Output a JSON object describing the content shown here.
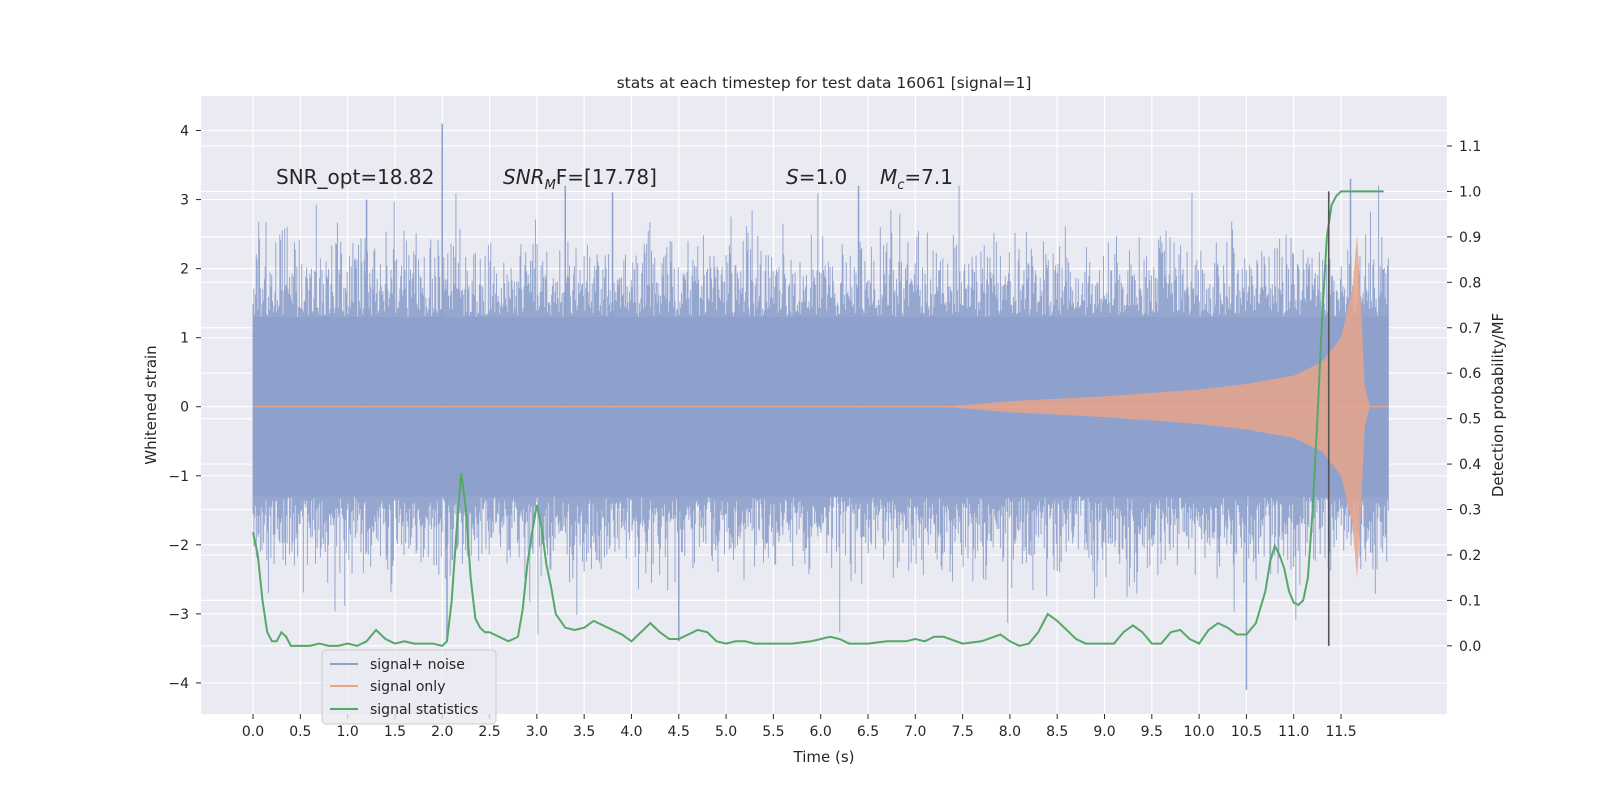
{
  "chart_data": {
    "type": "line",
    "title": "stats at each timestep for test data 16061 [signal=1]",
    "xlabel": "Time (s)",
    "ylabel": "Whitened strain",
    "y2label": "Detection probability/MF",
    "xlim": [
      -0.55,
      12.62
    ],
    "ylim": [
      -4.45,
      4.5
    ],
    "y2lim": [
      -0.15,
      1.21
    ],
    "x_ticks": [
      "0.0",
      "0.5",
      "1.0",
      "1.5",
      "2.0",
      "2.5",
      "3.0",
      "3.5",
      "4.0",
      "4.5",
      "5.0",
      "5.5",
      "6.0",
      "6.5",
      "7.0",
      "7.5",
      "8.0",
      "8.5",
      "9.0",
      "9.5",
      "10.0",
      "10.5",
      "11.0",
      "11.5"
    ],
    "y_ticks": [
      "4",
      "3",
      "2",
      "1",
      "0",
      "−1",
      "−2",
      "−3",
      "−4"
    ],
    "y2_ticks": [
      "1.1",
      "1.0",
      "0.9",
      "0.8",
      "0.7",
      "0.6",
      "0.5",
      "0.4",
      "0.3",
      "0.2",
      "0.1",
      "0.0"
    ],
    "grid": true,
    "legend_position": "lower-left",
    "colors": {
      "noise": "#8da0cb",
      "signal": "#e8a58b",
      "stat": "#55a868",
      "background": "#eaeaf2",
      "grid": "#ffffff",
      "marker": "#555555"
    },
    "annotations": {
      "snr_opt": "SNR_opt=18.82",
      "snr_mf_base": "SNR",
      "snr_mf_sub": "M",
      "snr_mf_rest": "F=[17.78]",
      "s_var": "S",
      "s_rest": "=1.0",
      "mc_var": "M",
      "mc_sub": "c",
      "mc_rest": "=7.1"
    },
    "vline_x": 11.37,
    "series": [
      {
        "name": "signal+ noise",
        "x_range": [
          0.0,
          12.0
        ],
        "band_level": 1.3,
        "peaks": [
          [
            2.0,
            4.1
          ],
          [
            1.2,
            3.0
          ],
          [
            3.3,
            3.2
          ],
          [
            3.8,
            3.1
          ],
          [
            6.4,
            3.2
          ],
          [
            11.6,
            3.3
          ],
          [
            10.5,
            -4.1
          ],
          [
            2.05,
            -3.4
          ],
          [
            4.5,
            -3.4
          ]
        ]
      },
      {
        "name": "signal only",
        "envelope": [
          [
            7.3,
            0.0
          ],
          [
            8.0,
            0.08
          ],
          [
            9.0,
            0.15
          ],
          [
            10.0,
            0.25
          ],
          [
            10.5,
            0.33
          ],
          [
            11.0,
            0.45
          ],
          [
            11.3,
            0.65
          ],
          [
            11.5,
            1.0
          ],
          [
            11.62,
            1.7
          ],
          [
            11.67,
            2.5
          ],
          [
            11.72,
            1.2
          ],
          [
            11.75,
            0.3
          ],
          [
            11.8,
            0.02
          ]
        ]
      },
      {
        "name": "signal statistics",
        "x": [
          0.0,
          0.05,
          0.1,
          0.15,
          0.2,
          0.25,
          0.3,
          0.35,
          0.4,
          0.45,
          0.5,
          0.6,
          0.7,
          0.8,
          0.9,
          1.0,
          1.1,
          1.2,
          1.3,
          1.4,
          1.5,
          1.6,
          1.7,
          1.8,
          1.9,
          2.0,
          2.05,
          2.1,
          2.15,
          2.2,
          2.25,
          2.3,
          2.35,
          2.4,
          2.45,
          2.5,
          2.6,
          2.7,
          2.8,
          2.85,
          2.9,
          2.95,
          3.0,
          3.05,
          3.1,
          3.15,
          3.2,
          3.3,
          3.4,
          3.5,
          3.6,
          3.7,
          3.8,
          3.9,
          4.0,
          4.1,
          4.2,
          4.3,
          4.4,
          4.5,
          4.6,
          4.7,
          4.8,
          4.9,
          5.0,
          5.1,
          5.2,
          5.3,
          5.5,
          5.7,
          5.9,
          6.0,
          6.1,
          6.2,
          6.3,
          6.5,
          6.7,
          6.9,
          7.0,
          7.1,
          7.2,
          7.3,
          7.5,
          7.7,
          7.9,
          8.0,
          8.1,
          8.2,
          8.3,
          8.4,
          8.5,
          8.6,
          8.7,
          8.8,
          8.9,
          9.0,
          9.1,
          9.2,
          9.3,
          9.4,
          9.5,
          9.6,
          9.7,
          9.8,
          9.9,
          10.0,
          10.1,
          10.2,
          10.3,
          10.4,
          10.5,
          10.6,
          10.7,
          10.75,
          10.8,
          10.85,
          10.9,
          10.95,
          11.0,
          11.05,
          11.1,
          11.15,
          11.2,
          11.25,
          11.3,
          11.35,
          11.4,
          11.45,
          11.5,
          11.55,
          11.6,
          11.7,
          11.8,
          11.9,
          11.95
        ],
        "values": [
          0.25,
          0.2,
          0.1,
          0.03,
          0.01,
          0.01,
          0.03,
          0.02,
          0.0,
          0.0,
          0.0,
          0.0,
          0.005,
          0.0,
          0.0,
          0.005,
          0.0,
          0.01,
          0.035,
          0.015,
          0.005,
          0.01,
          0.005,
          0.005,
          0.005,
          0.0,
          0.01,
          0.1,
          0.25,
          0.38,
          0.3,
          0.15,
          0.06,
          0.04,
          0.03,
          0.03,
          0.02,
          0.01,
          0.02,
          0.08,
          0.18,
          0.25,
          0.31,
          0.26,
          0.18,
          0.13,
          0.07,
          0.04,
          0.035,
          0.04,
          0.055,
          0.045,
          0.035,
          0.025,
          0.01,
          0.03,
          0.05,
          0.03,
          0.015,
          0.015,
          0.025,
          0.035,
          0.03,
          0.01,
          0.005,
          0.01,
          0.01,
          0.005,
          0.005,
          0.005,
          0.01,
          0.015,
          0.02,
          0.015,
          0.005,
          0.005,
          0.01,
          0.01,
          0.015,
          0.01,
          0.02,
          0.02,
          0.005,
          0.01,
          0.025,
          0.01,
          0.0,
          0.005,
          0.03,
          0.07,
          0.055,
          0.035,
          0.015,
          0.005,
          0.005,
          0.005,
          0.005,
          0.03,
          0.045,
          0.03,
          0.005,
          0.005,
          0.03,
          0.035,
          0.015,
          0.005,
          0.035,
          0.05,
          0.04,
          0.025,
          0.025,
          0.05,
          0.12,
          0.185,
          0.22,
          0.2,
          0.17,
          0.12,
          0.095,
          0.09,
          0.1,
          0.15,
          0.3,
          0.5,
          0.72,
          0.9,
          0.97,
          0.99,
          1.0,
          1.0,
          1.0,
          1.0,
          1.0,
          1.0,
          1.0
        ]
      }
    ]
  }
}
